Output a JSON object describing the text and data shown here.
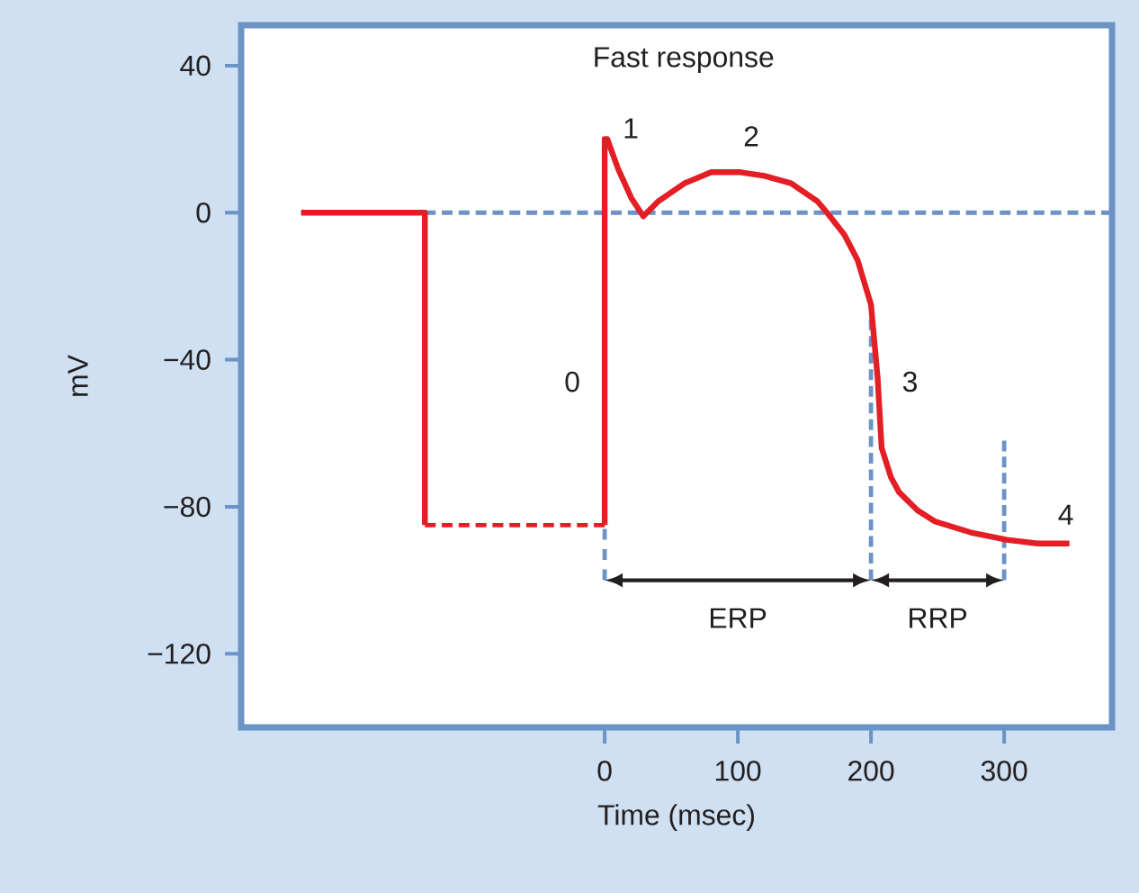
{
  "chart_data": {
    "type": "line",
    "title": "Fast response",
    "xlabel": "Time (msec)",
    "ylabel": "mV",
    "xlim": [
      -273,
      381
    ],
    "ylim": [
      -140,
      51
    ],
    "xticks": [
      0,
      100,
      200,
      300
    ],
    "yticks": [
      40,
      0,
      {
        "value": -40,
        "label": "−40"
      },
      {
        "value": -80,
        "label": "−80"
      },
      {
        "value": -120,
        "label": "−120"
      }
    ],
    "series": [
      {
        "color": "#6b93c6",
        "line_style": "dashed",
        "x": [
          -135,
          381
        ],
        "values": [
          0,
          0
        ]
      },
      {
        "color": "#6b93c6",
        "line_style": "dashed",
        "x": [
          0,
          0
        ],
        "values": [
          -86,
          -100
        ]
      },
      {
        "color": "#6b93c6",
        "line_style": "dashed",
        "x": [
          200,
          200
        ],
        "values": [
          -29,
          -100
        ]
      },
      {
        "color": "#6b93c6",
        "line_style": "dashed",
        "x": [
          300,
          300
        ],
        "values": [
          -62,
          -100
        ]
      },
      {
        "color": "#e31e24",
        "line_style": "solid",
        "x": [
          -228,
          -135,
          -135
        ],
        "values": [
          0,
          0,
          -85
        ]
      },
      {
        "color": "#e31e24",
        "line_style": "dashed",
        "x": [
          -135,
          0
        ],
        "values": [
          -85,
          -85
        ]
      },
      {
        "color": "#e31e24",
        "line_style": "solid",
        "x": [
          0,
          0,
          2,
          10,
          20,
          29,
          40,
          60,
          80,
          102,
          120,
          140,
          160,
          167,
          180,
          190,
          200,
          205,
          208,
          215,
          221,
          235,
          248,
          275,
          302,
          325,
          349
        ],
        "values": [
          -85,
          20,
          20,
          12,
          4,
          -1,
          3,
          8,
          11,
          11,
          10,
          8,
          3,
          0,
          -6,
          -13,
          -25,
          -45,
          -64,
          -72,
          -76,
          -81,
          -84,
          -87,
          -89,
          -90,
          -90
        ]
      }
    ],
    "annotations": [
      {
        "text": "0",
        "x": 0,
        "y": -46
      },
      {
        "text": "1",
        "x": 2,
        "y": 20
      },
      {
        "text": "2",
        "x": 102,
        "y": 11
      },
      {
        "text": "3",
        "x": 205,
        "y": -45
      },
      {
        "text": "4",
        "x": 349,
        "y": -90
      },
      "ERP",
      "RRP"
    ]
  }
}
